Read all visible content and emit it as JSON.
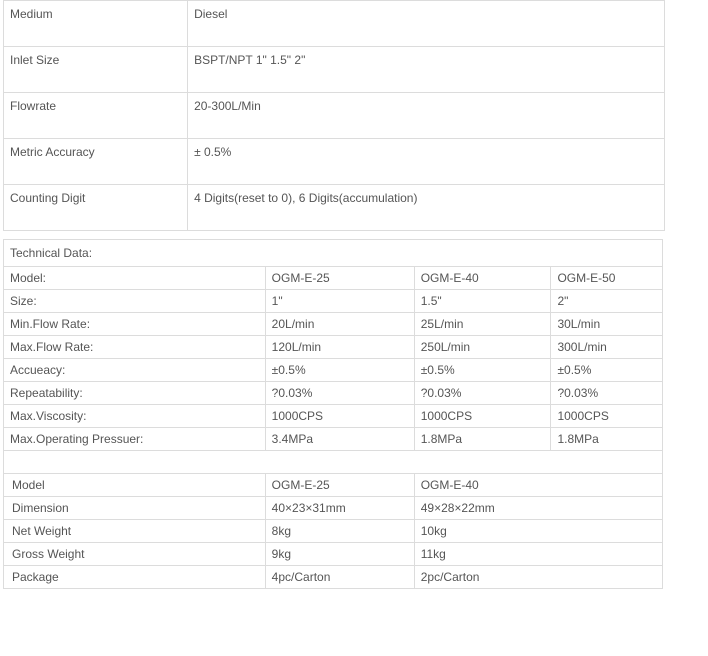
{
  "specs": {
    "rows": [
      {
        "label": "Medium",
        "value": "Diesel"
      },
      {
        "label": "Inlet Size",
        "value": "BSPT/NPT 1\" 1.5\" 2\""
      },
      {
        "label": "Flowrate",
        "value": "20-300L/Min"
      },
      {
        "label": "Metric Accuracy",
        "value": "± 0.5%"
      },
      {
        "label": "Counting Digit",
        "value": "4 Digits(reset to 0), 6 Digits(accumulation)"
      }
    ]
  },
  "technical": {
    "title": "Technical Data:",
    "header_label": "Model:",
    "models": [
      "OGM-E-25",
      "OGM-E-40",
      "OGM-E-50"
    ],
    "rows": [
      {
        "label": "Size:",
        "values": [
          "1\"",
          "1.5\"",
          "2\""
        ]
      },
      {
        "label": "Min.Flow Rate:",
        "values": [
          "20L/min",
          "25L/min",
          "30L/min"
        ]
      },
      {
        "label": "Max.Flow Rate:",
        "values": [
          "120L/min",
          "250L/min",
          "300L/min"
        ]
      },
      {
        "label": "Accueacy:",
        "values": [
          "±0.5%",
          "±0.5%",
          "±0.5%"
        ]
      },
      {
        "label": "Repeatability:",
        "values": [
          "?0.03%",
          "?0.03%",
          "?0.03%"
        ]
      },
      {
        "label": "Max.Viscosity:",
        "values": [
          "1000CPS",
          "1000CPS",
          "1000CPS"
        ]
      },
      {
        "label": "Max.Operating Pressuer:",
        "values": [
          "3.4MPa",
          "1.8MPa",
          "1.8MPa"
        ]
      }
    ]
  },
  "physical": {
    "header_label": "Model",
    "models": [
      "OGM-E-25",
      "OGM-E-40"
    ],
    "rows": [
      {
        "label": "Dimension",
        "values": [
          "40×23×31mm",
          "49×28×22mm"
        ]
      },
      {
        "label": "Net Weight",
        "values": [
          "8kg",
          "10kg"
        ]
      },
      {
        "label": "Gross Weight",
        "values": [
          "9kg",
          "11kg"
        ]
      },
      {
        "label": "Package",
        "values": [
          "4pc/Carton",
          "2pc/Carton"
        ]
      }
    ]
  },
  "styling": {
    "border_color": "#dcdcdc",
    "text_color": "#555555",
    "background_color": "#ffffff",
    "font_size": 12,
    "font_family": "Arial"
  }
}
